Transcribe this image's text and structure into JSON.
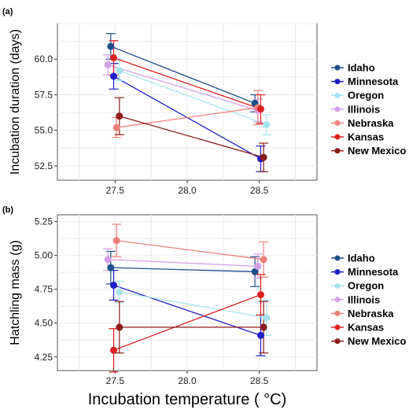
{
  "figure": {
    "shared_xlabel": "Incubation temperature ( °C)"
  },
  "chart_data": [
    {
      "type": "line",
      "panel_label": "(a)",
      "title": "",
      "xlabel": "",
      "ylabel": "Incubation duration (days)",
      "xlim": [
        27.1,
        28.9
      ],
      "ylim": [
        51.5,
        62.5
      ],
      "xticks": [
        "27.5",
        "28.0",
        "28.5"
      ],
      "yticks": [
        "52.5",
        "55.0",
        "57.5",
        "60.0"
      ],
      "grid": true,
      "legend_position": "right",
      "series": [
        {
          "name": "Idaho",
          "color": "#1f4e8c",
          "points": [
            {
              "x": 27.47,
              "y": 60.9,
              "err": 0.9
            },
            {
              "x": 28.47,
              "y": 56.9,
              "err": 0.6
            }
          ]
        },
        {
          "name": "Minnesota",
          "color": "#1f1fc8",
          "points": [
            {
              "x": 27.49,
              "y": 58.8,
              "err": 0.9
            },
            {
              "x": 28.51,
              "y": 53.0,
              "err": 0.9
            }
          ]
        },
        {
          "name": "Oregon",
          "color": "#a6e4ee",
          "points": [
            {
              "x": 27.53,
              "y": 59.2,
              "err": 0.7
            },
            {
              "x": 28.55,
              "y": 55.4,
              "err": 0.7
            }
          ]
        },
        {
          "name": "Illinois",
          "color": "#d4a0e6",
          "points": [
            {
              "x": 27.45,
              "y": 59.6,
              "err": 0.7
            },
            {
              "x": 28.49,
              "y": 56.4,
              "err": 0.8
            }
          ]
        },
        {
          "name": "Nebraska",
          "color": "#ee7f7a",
          "points": [
            {
              "x": 27.51,
              "y": 55.2,
              "err": 0.7
            },
            {
              "x": 28.49,
              "y": 56.6,
              "err": 1.2
            }
          ]
        },
        {
          "name": "Kansas",
          "color": "#dd2020",
          "points": [
            {
              "x": 27.49,
              "y": 60.1,
              "err": 1.2
            },
            {
              "x": 28.51,
              "y": 56.5,
              "err": 1.0
            }
          ]
        },
        {
          "name": "New Mexico",
          "color": "#8b1a1a",
          "points": [
            {
              "x": 27.53,
              "y": 56.0,
              "err": 1.3
            },
            {
              "x": 28.53,
              "y": 53.1,
              "err": 1.0
            }
          ]
        }
      ]
    },
    {
      "type": "line",
      "panel_label": "(b)",
      "title": "",
      "xlabel": "",
      "ylabel": "Hatchling mass (g)",
      "xlim": [
        27.1,
        28.9
      ],
      "ylim": [
        4.15,
        5.3
      ],
      "xticks": [
        "27.5",
        "28.0",
        "28.5"
      ],
      "yticks": [
        "4.25",
        "4.50",
        "4.75",
        "5.00",
        "5.25"
      ],
      "grid": true,
      "legend_position": "right",
      "series": [
        {
          "name": "Idaho",
          "color": "#1f4e8c",
          "points": [
            {
              "x": 27.47,
              "y": 4.91,
              "err": 0.12
            },
            {
              "x": 28.47,
              "y": 4.88,
              "err": 0.11
            }
          ]
        },
        {
          "name": "Minnesota",
          "color": "#1f1fc8",
          "points": [
            {
              "x": 27.49,
              "y": 4.78,
              "err": 0.11
            },
            {
              "x": 28.51,
              "y": 4.41,
              "err": 0.15
            }
          ]
        },
        {
          "name": "Oregon",
          "color": "#a6e4ee",
          "points": [
            {
              "x": 27.53,
              "y": 4.73,
              "err": 0.08
            },
            {
              "x": 28.55,
              "y": 4.54,
              "err": 0.13
            }
          ]
        },
        {
          "name": "Illinois",
          "color": "#d4a0e6",
          "points": [
            {
              "x": 27.45,
              "y": 4.97,
              "err": 0.08
            },
            {
              "x": 28.49,
              "y": 4.92,
              "err": 0.09
            }
          ]
        },
        {
          "name": "Nebraska",
          "color": "#ee7f7a",
          "points": [
            {
              "x": 27.51,
              "y": 5.11,
              "err": 0.12
            },
            {
              "x": 28.53,
              "y": 4.97,
              "err": 0.13
            }
          ]
        },
        {
          "name": "Kansas",
          "color": "#dd2020",
          "points": [
            {
              "x": 27.49,
              "y": 4.3,
              "err": 0.16
            },
            {
              "x": 28.51,
              "y": 4.71,
              "err": 0.15
            }
          ]
        },
        {
          "name": "New Mexico",
          "color": "#8b1a1a",
          "points": [
            {
              "x": 27.53,
              "y": 4.47,
              "err": 0.19
            },
            {
              "x": 28.53,
              "y": 4.47,
              "err": 0.19
            }
          ]
        }
      ]
    }
  ]
}
